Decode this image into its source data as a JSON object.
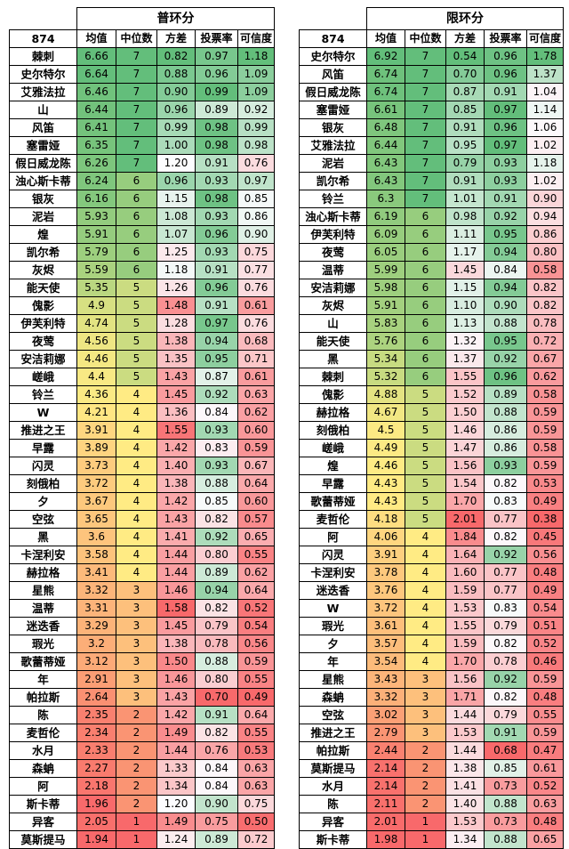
{
  "colors": {
    "low": "#f8696b",
    "mid": "#ffeb84",
    "high": "#63be7b",
    "mid_light": "#fcfcff"
  },
  "panels": [
    {
      "title": "普环分",
      "corner": "874",
      "headers": [
        "均值",
        "中位数",
        "方差",
        "投票率",
        "可信度"
      ],
      "rows": [
        [
          "棘刺",
          "6.66",
          "7",
          "0.82",
          "0.97",
          "1.18"
        ],
        [
          "史尔特尔",
          "6.64",
          "7",
          "0.88",
          "0.96",
          "1.09"
        ],
        [
          "艾雅法拉",
          "6.46",
          "7",
          "0.90",
          "0.99",
          "1.09"
        ],
        [
          "山",
          "6.44",
          "7",
          "0.96",
          "0.89",
          "0.92"
        ],
        [
          "风笛",
          "6.41",
          "7",
          "0.99",
          "0.98",
          "0.99"
        ],
        [
          "塞雷娅",
          "6.35",
          "7",
          "1.00",
          "0.98",
          "0.98"
        ],
        [
          "假日威龙陈",
          "6.26",
          "7",
          "1.20",
          "0.91",
          "0.76"
        ],
        [
          "浊心斯卡蒂",
          "6.24",
          "6",
          "0.96",
          "0.93",
          "0.97"
        ],
        [
          "银灰",
          "6.16",
          "6",
          "1.15",
          "0.98",
          "0.85"
        ],
        [
          "泥岩",
          "5.93",
          "6",
          "1.08",
          "0.93",
          "0.86"
        ],
        [
          "煌",
          "5.91",
          "6",
          "1.07",
          "0.96",
          "0.90"
        ],
        [
          "凯尔希",
          "5.79",
          "6",
          "1.25",
          "0.93",
          "0.75"
        ],
        [
          "灰烬",
          "5.59",
          "6",
          "1.18",
          "0.91",
          "0.77"
        ],
        [
          "能天使",
          "5.35",
          "5",
          "1.26",
          "0.96",
          "0.76"
        ],
        [
          "傀影",
          "4.9",
          "5",
          "1.48",
          "0.91",
          "0.61"
        ],
        [
          "伊芙利特",
          "4.74",
          "5",
          "1.28",
          "0.97",
          "0.76"
        ],
        [
          "夜莺",
          "4.56",
          "5",
          "1.38",
          "0.94",
          "0.68"
        ],
        [
          "安洁莉娜",
          "4.46",
          "5",
          "1.35",
          "0.95",
          "0.71"
        ],
        [
          "嵯峨",
          "4.4",
          "5",
          "1.43",
          "0.87",
          "0.61"
        ],
        [
          "铃兰",
          "4.36",
          "4",
          "1.45",
          "0.92",
          "0.63"
        ],
        [
          "W",
          "4.21",
          "4",
          "1.36",
          "0.84",
          "0.62"
        ],
        [
          "推进之王",
          "3.91",
          "4",
          "1.55",
          "0.93",
          "0.60"
        ],
        [
          "早露",
          "3.89",
          "4",
          "1.42",
          "0.83",
          "0.59"
        ],
        [
          "闪灵",
          "3.73",
          "4",
          "1.40",
          "0.93",
          "0.67"
        ],
        [
          "刻俄柏",
          "3.72",
          "4",
          "1.38",
          "0.88",
          "0.64"
        ],
        [
          "夕",
          "3.67",
          "4",
          "1.42",
          "0.85",
          "0.60"
        ],
        [
          "空弦",
          "3.65",
          "4",
          "1.43",
          "0.82",
          "0.57"
        ],
        [
          "黑",
          "3.6",
          "4",
          "1.41",
          "0.92",
          "0.65"
        ],
        [
          "卡涅利安",
          "3.58",
          "4",
          "1.44",
          "0.80",
          "0.55"
        ],
        [
          "赫拉格",
          "3.41",
          "4",
          "1.44",
          "0.89",
          "0.62"
        ],
        [
          "星熊",
          "3.32",
          "3",
          "1.46",
          "0.94",
          "0.64"
        ],
        [
          "温蒂",
          "3.31",
          "3",
          "1.58",
          "0.82",
          "0.52"
        ],
        [
          "迷迭香",
          "3.29",
          "3",
          "1.45",
          "0.79",
          "0.54"
        ],
        [
          "瑕光",
          "3.2",
          "3",
          "1.38",
          "0.78",
          "0.56"
        ],
        [
          "歌蕾蒂娅",
          "3.12",
          "3",
          "1.50",
          "0.88",
          "0.59"
        ],
        [
          "年",
          "2.91",
          "3",
          "1.46",
          "0.80",
          "0.55"
        ],
        [
          "帕拉斯",
          "2.64",
          "3",
          "1.43",
          "0.70",
          "0.49"
        ],
        [
          "陈",
          "2.35",
          "2",
          "1.42",
          "0.91",
          "0.64"
        ],
        [
          "麦哲伦",
          "2.34",
          "2",
          "1.49",
          "0.82",
          "0.55"
        ],
        [
          "水月",
          "2.33",
          "2",
          "1.44",
          "0.76",
          "0.53"
        ],
        [
          "森蚺",
          "2.27",
          "2",
          "1.33",
          "0.84",
          "0.63"
        ],
        [
          "阿",
          "2.18",
          "2",
          "1.34",
          "0.84",
          "0.63"
        ],
        [
          "斯卡蒂",
          "1.96",
          "2",
          "1.20",
          "0.90",
          "0.75"
        ],
        [
          "异客",
          "2.05",
          "1",
          "1.49",
          "0.75",
          "0.50"
        ],
        [
          "莫斯提马",
          "1.94",
          "1",
          "1.24",
          "0.89",
          "0.72"
        ]
      ]
    },
    {
      "title": "限环分",
      "corner": "874",
      "headers": [
        "均值",
        "中位数",
        "方差",
        "投票率",
        "可信度"
      ],
      "rows": [
        [
          "史尔特尔",
          "6.92",
          "7",
          "0.54",
          "0.96",
          "1.78"
        ],
        [
          "风笛",
          "6.74",
          "7",
          "0.70",
          "0.96",
          "1.37"
        ],
        [
          "假日威龙陈",
          "6.74",
          "7",
          "0.87",
          "0.91",
          "1.04"
        ],
        [
          "塞雷娅",
          "6.61",
          "7",
          "0.85",
          "0.97",
          "1.14"
        ],
        [
          "银灰",
          "6.48",
          "7",
          "0.91",
          "0.96",
          "1.06"
        ],
        [
          "艾雅法拉",
          "6.44",
          "7",
          "0.95",
          "0.97",
          "1.02"
        ],
        [
          "泥岩",
          "6.43",
          "7",
          "0.79",
          "0.93",
          "1.18"
        ],
        [
          "凯尔希",
          "6.43",
          "7",
          "0.91",
          "0.93",
          "1.02"
        ],
        [
          "铃兰",
          "6.3",
          "7",
          "1.01",
          "0.91",
          "0.90"
        ],
        [
          "浊心斯卡蒂",
          "6.19",
          "6",
          "0.98",
          "0.92",
          "0.94"
        ],
        [
          "伊芙利特",
          "6.09",
          "6",
          "1.11",
          "0.95",
          "0.86"
        ],
        [
          "夜莺",
          "6.05",
          "6",
          "1.17",
          "0.94",
          "0.80"
        ],
        [
          "温蒂",
          "5.99",
          "6",
          "1.45",
          "0.84",
          "0.58"
        ],
        [
          "安洁莉娜",
          "5.98",
          "6",
          "1.15",
          "0.94",
          "0.82"
        ],
        [
          "灰烬",
          "5.91",
          "6",
          "1.10",
          "0.90",
          "0.82"
        ],
        [
          "山",
          "5.83",
          "6",
          "1.13",
          "0.88",
          "0.78"
        ],
        [
          "能天使",
          "5.76",
          "6",
          "1.32",
          "0.95",
          "0.72"
        ],
        [
          "黑",
          "5.34",
          "6",
          "1.37",
          "0.92",
          "0.67"
        ],
        [
          "棘刺",
          "5.32",
          "6",
          "1.55",
          "0.96",
          "0.62"
        ],
        [
          "傀影",
          "4.88",
          "5",
          "1.52",
          "0.89",
          "0.58"
        ],
        [
          "赫拉格",
          "4.67",
          "5",
          "1.50",
          "0.88",
          "0.59"
        ],
        [
          "刻俄柏",
          "4.5",
          "5",
          "1.46",
          "0.86",
          "0.59"
        ],
        [
          "嵯峨",
          "4.49",
          "5",
          "1.47",
          "0.86",
          "0.58"
        ],
        [
          "煌",
          "4.46",
          "5",
          "1.56",
          "0.93",
          "0.59"
        ],
        [
          "早露",
          "4.43",
          "5",
          "1.54",
          "0.82",
          "0.53"
        ],
        [
          "歌蕾蒂娅",
          "4.43",
          "5",
          "1.70",
          "0.83",
          "0.49"
        ],
        [
          "麦哲伦",
          "4.18",
          "5",
          "2.01",
          "0.77",
          "0.38"
        ],
        [
          "阿",
          "4.06",
          "4",
          "1.84",
          "0.82",
          "0.45"
        ],
        [
          "闪灵",
          "3.91",
          "4",
          "1.64",
          "0.92",
          "0.56"
        ],
        [
          "卡涅利安",
          "3.78",
          "4",
          "1.60",
          "0.77",
          "0.48"
        ],
        [
          "迷迭香",
          "3.76",
          "4",
          "1.59",
          "0.77",
          "0.49"
        ],
        [
          "W",
          "3.72",
          "4",
          "1.53",
          "0.83",
          "0.54"
        ],
        [
          "瑕光",
          "3.61",
          "4",
          "1.55",
          "0.79",
          "0.51"
        ],
        [
          "夕",
          "3.57",
          "4",
          "1.59",
          "0.82",
          "0.52"
        ],
        [
          "年",
          "3.54",
          "4",
          "1.70",
          "0.78",
          "0.46"
        ],
        [
          "星熊",
          "3.43",
          "3",
          "1.56",
          "0.92",
          "0.59"
        ],
        [
          "森蚺",
          "3.32",
          "3",
          "1.71",
          "0.82",
          "0.48"
        ],
        [
          "空弦",
          "3.02",
          "3",
          "1.44",
          "0.79",
          "0.55"
        ],
        [
          "推进之王",
          "2.79",
          "3",
          "1.53",
          "0.91",
          "0.59"
        ],
        [
          "帕拉斯",
          "2.44",
          "2",
          "1.44",
          "0.68",
          "0.47"
        ],
        [
          "莫斯提马",
          "2.14",
          "2",
          "1.38",
          "0.85",
          "0.61"
        ],
        [
          "水月",
          "2.14",
          "2",
          "1.41",
          "0.73",
          "0.52"
        ],
        [
          "陈",
          "2.11",
          "2",
          "1.40",
          "0.88",
          "0.63"
        ],
        [
          "异客",
          "2.01",
          "1",
          "1.53",
          "0.73",
          "0.48"
        ],
        [
          "斯卡蒂",
          "1.98",
          "1",
          "1.34",
          "0.88",
          "0.65"
        ]
      ]
    }
  ]
}
